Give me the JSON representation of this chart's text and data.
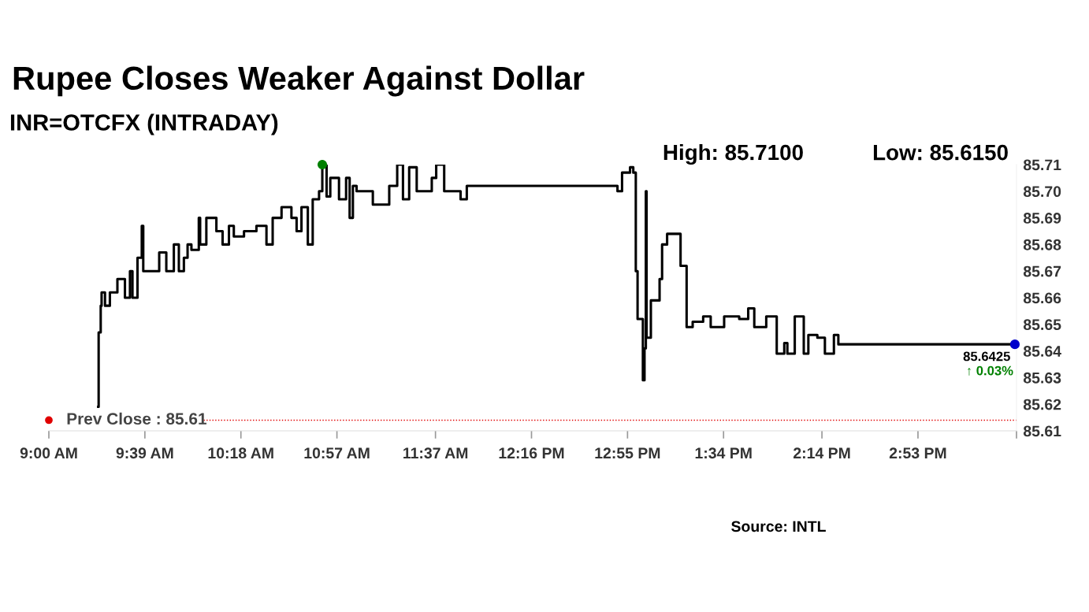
{
  "chart_data": {
    "type": "step",
    "title": "Rupee Closes Weaker Against Dollar",
    "subtitle": "INR=OTCFX (INTRADAY)",
    "series": [
      {
        "color": "#000000",
        "x": [
          9.334,
          9.337,
          9.351,
          9.357,
          9.38,
          9.413,
          9.464,
          9.515,
          9.549,
          9.566,
          9.6,
          9.629,
          9.639,
          9.736,
          9.747,
          9.795,
          9.846,
          9.88,
          9.914,
          9.939,
          9.965,
          10.015,
          10.024,
          10.066,
          10.134,
          10.176,
          10.219,
          10.252,
          10.321,
          10.405,
          10.473,
          10.515,
          10.575,
          10.642,
          10.677,
          10.71,
          10.753,
          10.786,
          10.829,
          10.851,
          10.88,
          10.905,
          10.964,
          11.012,
          11.036,
          11.058,
          11.083,
          11.193,
          11.304,
          11.358,
          11.397,
          11.439,
          11.49,
          11.592,
          11.622,
          11.676,
          11.787,
          11.829,
          12.838,
          12.849,
          12.88,
          12.934,
          12.956,
          12.973,
          12.985,
          13.021,
          13.032,
          13.041,
          13.046,
          13.075,
          13.134,
          13.151,
          13.185,
          13.246,
          13.276,
          13.317,
          13.358,
          13.429,
          13.48,
          13.571,
          13.673,
          13.734,
          13.775,
          13.856,
          13.927,
          13.978,
          13.999,
          14.049,
          14.11,
          14.141,
          14.202,
          14.253,
          14.314,
          14.344,
          15.539
        ],
        "values": [
          85.619,
          85.647,
          85.657,
          85.662,
          85.657,
          85.662,
          85.667,
          85.66,
          85.67,
          85.66,
          85.675,
          85.687,
          85.67,
          85.67,
          85.677,
          85.67,
          85.68,
          85.67,
          85.675,
          85.68,
          85.678,
          85.69,
          85.68,
          85.69,
          85.685,
          85.68,
          85.687,
          85.683,
          85.685,
          85.687,
          85.68,
          85.69,
          85.694,
          85.69,
          85.685,
          85.694,
          85.68,
          85.697,
          85.7,
          85.71,
          85.698,
          85.705,
          85.697,
          85.705,
          85.69,
          85.702,
          85.7,
          85.695,
          85.702,
          85.71,
          85.697,
          85.709,
          85.7,
          85.705,
          85.71,
          85.7,
          85.697,
          85.702,
          85.702,
          85.7,
          85.707,
          85.709,
          85.707,
          85.67,
          85.652,
          85.629,
          85.641,
          85.7,
          85.645,
          85.659,
          85.667,
          85.68,
          85.684,
          85.684,
          85.672,
          85.649,
          85.651,
          85.653,
          85.649,
          85.653,
          85.652,
          85.656,
          85.649,
          85.653,
          85.639,
          85.643,
          85.639,
          85.653,
          85.639,
          85.646,
          85.645,
          85.639,
          85.646,
          85.6425,
          85.6425
        ]
      },
      {
        "type": "scatter",
        "color": "#008000",
        "x": [
          10.851
        ],
        "values": [
          85.71
        ]
      },
      {
        "type": "scatter",
        "color": "#0000cc",
        "x": [
          15.539
        ],
        "values": [
          85.6425
        ]
      }
    ],
    "xlim": [
      9.0,
      15.55
    ],
    "xticks": [
      {
        "value": 9.0,
        "label": "9:00 AM"
      },
      {
        "value": 9.65,
        "label": "9:39 AM"
      },
      {
        "value": 10.3,
        "label": "10:18 AM"
      },
      {
        "value": 10.95,
        "label": "10:57 AM"
      },
      {
        "value": 11.617,
        "label": "11:37 AM"
      },
      {
        "value": 12.267,
        "label": "12:16 PM"
      },
      {
        "value": 12.917,
        "label": "12:55 PM"
      },
      {
        "value": 13.567,
        "label": "1:34 PM"
      },
      {
        "value": 14.233,
        "label": "2:14 PM"
      },
      {
        "value": 14.883,
        "label": "2:53 PM"
      },
      {
        "value": 15.55,
        "label": null
      }
    ],
    "ylim": [
      85.61,
      85.71
    ],
    "yticks": [
      85.61,
      85.62,
      85.63,
      85.64,
      85.65,
      85.66,
      85.67,
      85.68,
      85.69,
      {
        "value": 85.7,
        "label": "85.70"
      },
      85.71
    ],
    "ref_lines": [
      {
        "axis": "y",
        "value": 85.614,
        "label": "Prev Close : 85.61",
        "color": "#e00000",
        "line_style": "dotted"
      }
    ],
    "annotations": [
      "High: 85.7100",
      "Low: 85.6150",
      "Source: INTL",
      {
        "text": "85.6425",
        "x": 15.539,
        "y": 85.6425
      },
      "↑ 0.03%"
    ],
    "grid": false,
    "legend": false
  }
}
